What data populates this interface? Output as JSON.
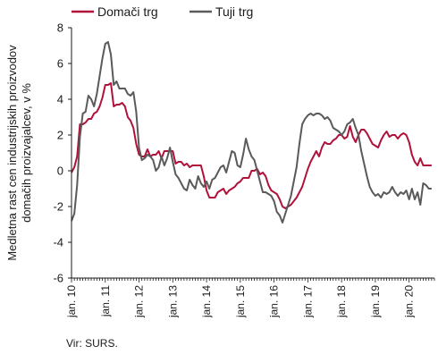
{
  "chart_data": {
    "type": "line",
    "title": "",
    "ylabel_lines": [
      "Medletna rast cen industrijskih proizvodov",
      "domačih proizvajalcev, v %"
    ],
    "xlabel": "",
    "ylim": [
      -6,
      8
    ],
    "yticks": [
      -6,
      -4,
      -2,
      0,
      2,
      4,
      6,
      8
    ],
    "x_start_year": 2010,
    "x_end_fraction": 10.75,
    "xticks": [
      "jan. 10",
      "jan. 11",
      "jan. 12",
      "jan. 13",
      "jan. 14",
      "jan. 15",
      "jan. 16",
      "jan. 17",
      "jan. 18",
      "jan. 19",
      "jan. 20"
    ],
    "legend_position": "top-left",
    "grid": false,
    "series": [
      {
        "name": "Domači trg",
        "color": "#b0123b",
        "values": [
          -0.1,
          0.2,
          0.8,
          2.6,
          2.6,
          2.7,
          2.9,
          2.9,
          3.2,
          3.3,
          3.6,
          4.1,
          4.8,
          4.8,
          4.9,
          3.6,
          3.7,
          3.7,
          3.8,
          3.6,
          3.0,
          2.8,
          2.4,
          1.5,
          0.9,
          0.8,
          0.8,
          1.2,
          0.8,
          0.9,
          0.9,
          1.1,
          0.7,
          1.1,
          1.1,
          1.1,
          1.1,
          0.4,
          0.5,
          0.5,
          0.3,
          0.4,
          0.2,
          0.3,
          0.3,
          0.3,
          0.3,
          -0.3,
          -1.1,
          -1.5,
          -1.5,
          -1.5,
          -1.2,
          -1.1,
          -1.0,
          -1.3,
          -1.1,
          -1.0,
          -0.9,
          -0.7,
          -0.6,
          -0.4,
          -0.4,
          -0.4,
          0.0,
          0.0,
          0.1,
          -0.2,
          -0.1,
          -0.3,
          -0.8,
          -1.1,
          -1.2,
          -1.3,
          -1.6,
          -2.0,
          -2.1,
          -2.0,
          -1.9,
          -1.7,
          -1.5,
          -1.2,
          -0.9,
          -0.4,
          0.1,
          0.5,
          0.8,
          1.1,
          0.8,
          1.3,
          1.6,
          1.5,
          1.5,
          1.7,
          1.8,
          2.0,
          2.0,
          1.8,
          1.9,
          2.5,
          1.9,
          1.6,
          2.0,
          2.3,
          2.3,
          2.1,
          1.8,
          1.5,
          1.4,
          1.3,
          1.7,
          2.0,
          2.2,
          1.9,
          2.0,
          2.0,
          1.8,
          2.0,
          2.1,
          2.0,
          1.6,
          0.9,
          0.5,
          0.3,
          0.7,
          0.3,
          0.3,
          0.3,
          0.3
        ]
      },
      {
        "name": "Tuji trg",
        "color": "#5a5a5a",
        "values": [
          -2.8,
          -2.4,
          -0.8,
          1.9,
          3.2,
          3.3,
          4.2,
          4.0,
          3.6,
          4.3,
          5.3,
          6.3,
          7.1,
          7.2,
          6.5,
          4.8,
          5.0,
          4.6,
          4.6,
          4.6,
          4.3,
          4.2,
          4.4,
          3.3,
          1.3,
          0.6,
          0.7,
          0.9,
          0.8,
          0.6,
          0.0,
          0.2,
          0.8,
          0.3,
          0.7,
          1.3,
          0.5,
          -0.2,
          -0.4,
          -0.7,
          -1.0,
          -1.1,
          -0.5,
          -0.8,
          -1.0,
          -0.3,
          -0.7,
          -0.9,
          -0.6,
          -1.0,
          -0.5,
          -0.4,
          -0.1,
          0.2,
          0.3,
          -0.1,
          0.5,
          1.1,
          1.0,
          0.3,
          0.2,
          0.9,
          1.8,
          1.2,
          0.8,
          0.6,
          0.0,
          -0.6,
          -1.2,
          -1.2,
          -1.3,
          -1.4,
          -1.7,
          -2.3,
          -2.5,
          -2.9,
          -2.4,
          -1.9,
          -1.4,
          -0.6,
          0.2,
          1.5,
          2.6,
          2.9,
          3.1,
          3.2,
          3.1,
          3.2,
          3.2,
          3.1,
          2.9,
          3.0,
          2.8,
          2.4,
          2.3,
          2.2,
          2.0,
          2.2,
          2.6,
          2.7,
          2.9,
          2.4,
          2.0,
          1.1,
          0.4,
          -0.3,
          -0.9,
          -1.2,
          -1.4,
          -1.3,
          -1.5,
          -1.2,
          -1.3,
          -1.2,
          -0.9,
          -1.2,
          -1.4,
          -1.2,
          -1.3,
          -1.1,
          -1.6,
          -1.0,
          -1.6,
          -1.2,
          -1.9,
          -0.7,
          -0.8,
          -1.0,
          -1.0
        ]
      }
    ]
  },
  "source_note": "Vir: SURS."
}
